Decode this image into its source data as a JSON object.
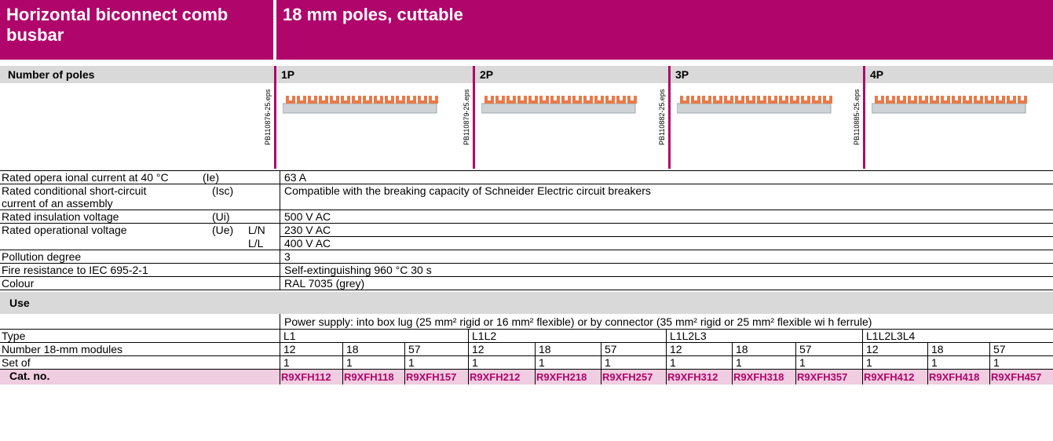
{
  "header": {
    "title": "Horizontal biconnect comb busbar",
    "subtitle": "18 mm poles, cuttable"
  },
  "poles": {
    "label": "Number of poles",
    "columns": [
      "1P",
      "2P",
      "3P",
      "4P"
    ],
    "image_refs": [
      "PB110876-25.eps",
      "PB110879-25.eps",
      "PB110882-25.eps",
      "PB110885-25.eps"
    ]
  },
  "specs": [
    {
      "label": "Rated opera ional current at 40 °C",
      "symbol": "(Ie)",
      "value": "63 A"
    },
    {
      "label": "Rated conditional short-circuit",
      "label2": "current of an assembly",
      "symbol": "(Isc)",
      "value": "Compatible with the breaking capacity of Schneider Electric circuit breakers"
    },
    {
      "label": "Rated insulation voltage",
      "symbol": "(Ui)",
      "value": "500 V AC"
    },
    {
      "label": "Rated operational voltage",
      "symbol": "(Ue)",
      "sub": "L/N",
      "value": "230 V AC"
    },
    {
      "sub": "L/L",
      "value": "400 V AC"
    },
    {
      "label": "Pollution degree",
      "value": "3"
    },
    {
      "label": "Fire resistance to IEC 695-2-1",
      "value": "Self-extinguishing 960 °C 30 s"
    },
    {
      "label": "Colour",
      "value": "RAL 7035 (grey)"
    }
  ],
  "use": {
    "title": "Use",
    "power_supply": "Power supply: into box lug (25 mm² rigid or 16 mm² flexible) or by connector (35 mm² rigid or 25 mm² flexible wi h ferrule)",
    "type": {
      "label": "Type",
      "values": [
        "L1",
        "L1L2",
        "L1L2L3",
        "L1L2L3L4"
      ]
    },
    "modules": {
      "label": "Number 18-mm modules",
      "values": [
        12,
        18,
        57,
        12,
        18,
        57,
        12,
        18,
        57,
        12,
        18,
        57
      ]
    },
    "set_of": {
      "label": "Set of",
      "values": [
        1,
        1,
        1,
        1,
        1,
        1,
        1,
        1,
        1,
        1,
        1,
        1
      ]
    },
    "cat_no": {
      "label": "Cat. no.",
      "values": [
        "R9XFH112",
        "R9XFH118",
        "R9XFH157",
        "R9XFH212",
        "R9XFH218",
        "R9XFH257",
        "R9XFH312",
        "R9XFH318",
        "R9XFH357",
        "R9XFH412",
        "R9XFH418",
        "R9XFH457"
      ]
    }
  }
}
